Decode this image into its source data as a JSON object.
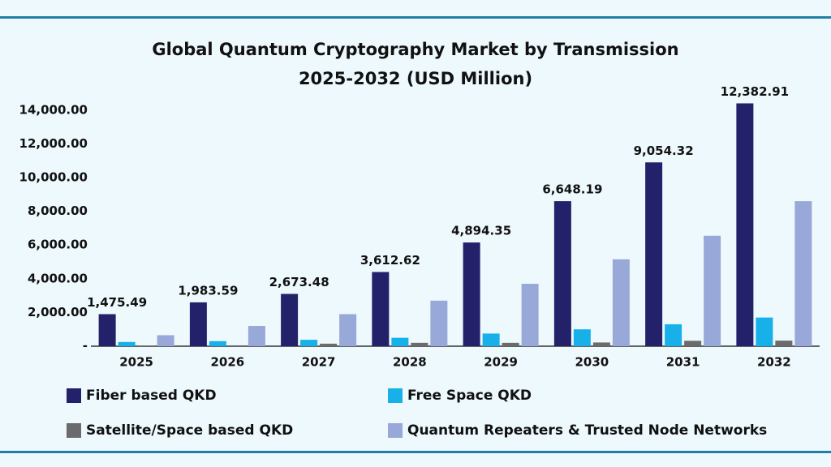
{
  "chart_data": {
    "type": "bar",
    "title": "Global Quantum Cryptography Market by Transmission",
    "subtitle": "2025-2032 (USD Million)",
    "categories": [
      "2025",
      "2026",
      "2027",
      "2028",
      "2029",
      "2030",
      "2031",
      "2032"
    ],
    "series": [
      {
        "name": "Fiber based QKD",
        "color": "#22216a",
        "values": [
          1900,
          2600,
          3100,
          4400,
          6150,
          8600,
          10900,
          14400
        ]
      },
      {
        "name": "Free Space QKD",
        "color": "#18b0e8",
        "values": [
          250,
          300,
          380,
          500,
          750,
          1000,
          1300,
          1700
        ]
      },
      {
        "name": "Satellite/Space based QKD",
        "color": "#6b6b6b",
        "values": [
          30,
          50,
          150,
          200,
          200,
          220,
          320,
          330
        ]
      },
      {
        "name": "Quantum Repeaters & Trusted Node Networks",
        "color": "#98a8d8",
        "values": [
          650,
          1200,
          1900,
          2700,
          3700,
          5150,
          6550,
          8600
        ]
      }
    ],
    "annotations": [
      "1,475.49",
      "1,983.59",
      "2,673.48",
      "3,612.62",
      "4,894.35",
      "6,648.19",
      "9,054.32",
      "12,382.91"
    ],
    "ylim": [
      0,
      15000
    ],
    "yticks": [
      {
        "value": 0,
        "label": "-"
      },
      {
        "value": 2000,
        "label": "2,000.00"
      },
      {
        "value": 4000,
        "label": "4,000.00"
      },
      {
        "value": 6000,
        "label": "6,000.00"
      },
      {
        "value": 8000,
        "label": "8,000.00"
      },
      {
        "value": 10000,
        "label": "10,000.00"
      },
      {
        "value": 12000,
        "label": "12,000.00"
      },
      {
        "value": 14000,
        "label": "14,000.00"
      }
    ],
    "grid": false
  }
}
